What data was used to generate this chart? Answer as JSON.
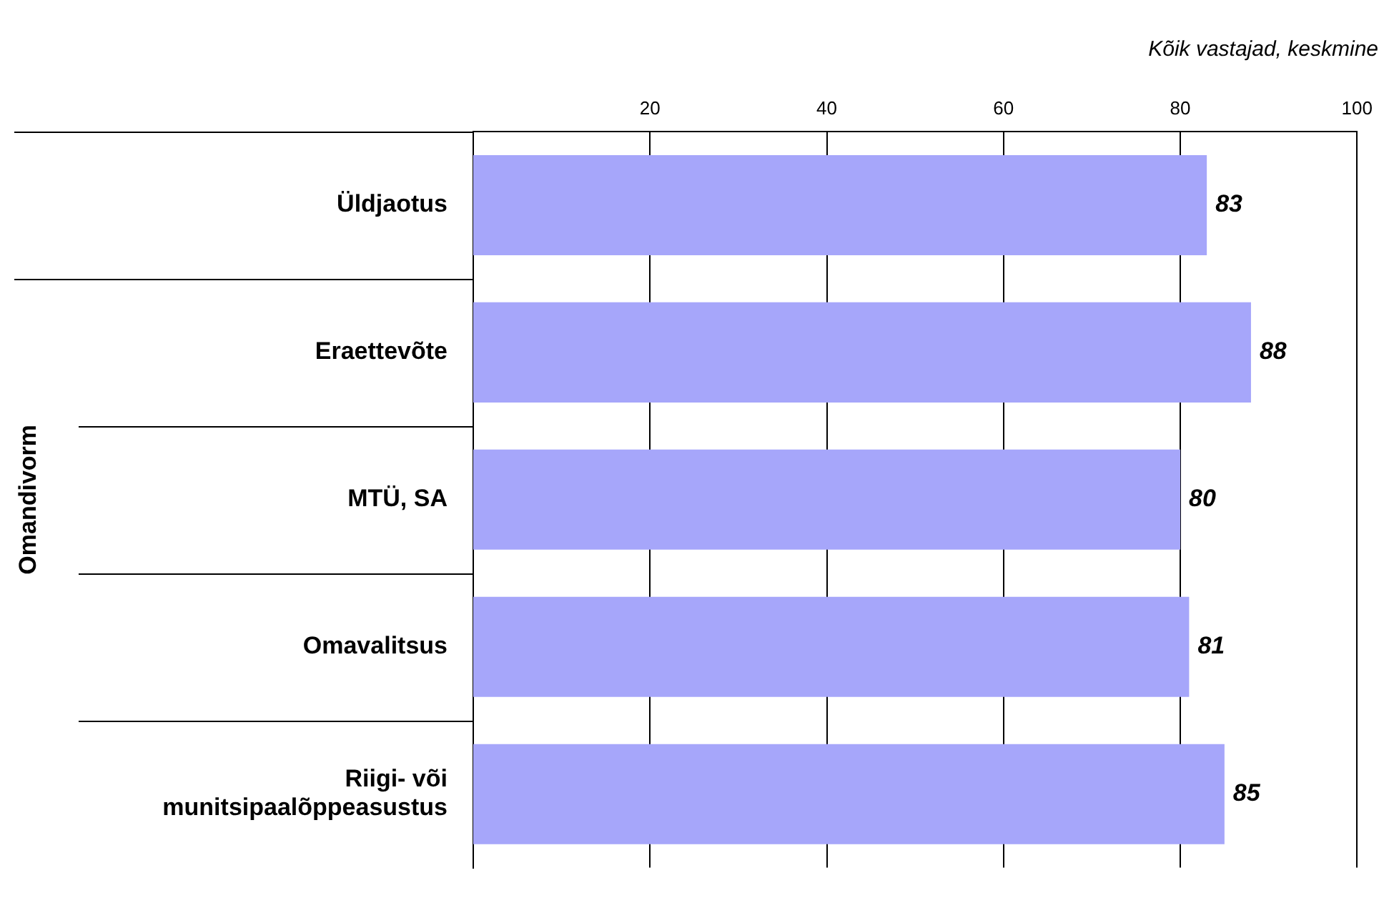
{
  "chart_data": {
    "type": "bar",
    "orientation": "horizontal",
    "categories": [
      "Üldjaotus",
      "Eraettevõte",
      "MTÜ, SA",
      "Omavalitsus",
      "Riigi- või munitsipaalõppeasustus"
    ],
    "values": [
      83,
      88,
      80,
      81,
      85
    ],
    "color": "#a6a6fa",
    "ylabel": "Omandivorm",
    "xlim": [
      0,
      100
    ],
    "xticks": [
      20,
      40,
      60,
      80,
      100
    ],
    "grid": "x",
    "data_labels": true,
    "legend": false,
    "annotations": [
      "Kõik vastajad, keskmine"
    ]
  }
}
